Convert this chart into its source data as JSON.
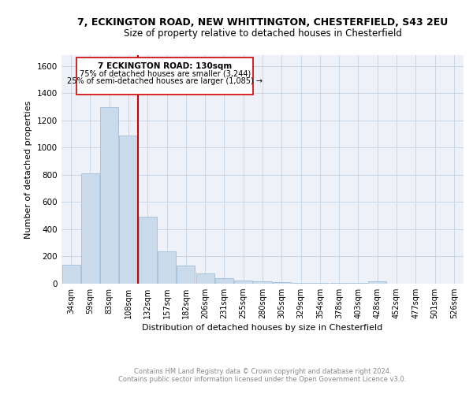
{
  "title_line1": "7, ECKINGTON ROAD, NEW WHITTINGTON, CHESTERFIELD, S43 2EU",
  "title_line2": "Size of property relative to detached houses in Chesterfield",
  "xlabel": "Distribution of detached houses by size in Chesterfield",
  "ylabel": "Number of detached properties",
  "footer_line1": "Contains HM Land Registry data © Crown copyright and database right 2024.",
  "footer_line2": "Contains public sector information licensed under the Open Government Licence v3.0.",
  "categories": [
    "34sqm",
    "59sqm",
    "83sqm",
    "108sqm",
    "132sqm",
    "157sqm",
    "182sqm",
    "206sqm",
    "231sqm",
    "255sqm",
    "280sqm",
    "305sqm",
    "329sqm",
    "354sqm",
    "378sqm",
    "403sqm",
    "428sqm",
    "452sqm",
    "477sqm",
    "501sqm",
    "526sqm"
  ],
  "values": [
    140,
    810,
    1300,
    1090,
    490,
    235,
    135,
    75,
    40,
    25,
    15,
    10,
    8,
    8,
    8,
    8,
    20,
    0,
    0,
    0,
    0
  ],
  "bar_color": "#c9daea",
  "bar_edge_color": "#a8c4de",
  "red_line_index": 3,
  "red_line_color": "#cc0000",
  "annotation_text_line1": "7 ECKINGTON ROAD: 130sqm",
  "annotation_text_line2": "75% of detached houses are smaller (3,244)",
  "annotation_text_line3": "25% of semi-detached houses are larger (1,085) →",
  "annotation_box_color": "#ffffff",
  "annotation_box_edge_color": "#cc0000",
  "ylim": [
    0,
    1680
  ],
  "yticks": [
    0,
    200,
    400,
    600,
    800,
    1000,
    1200,
    1400,
    1600
  ],
  "grid_color": "#c8d8e8",
  "bg_color": "#eef2f8"
}
